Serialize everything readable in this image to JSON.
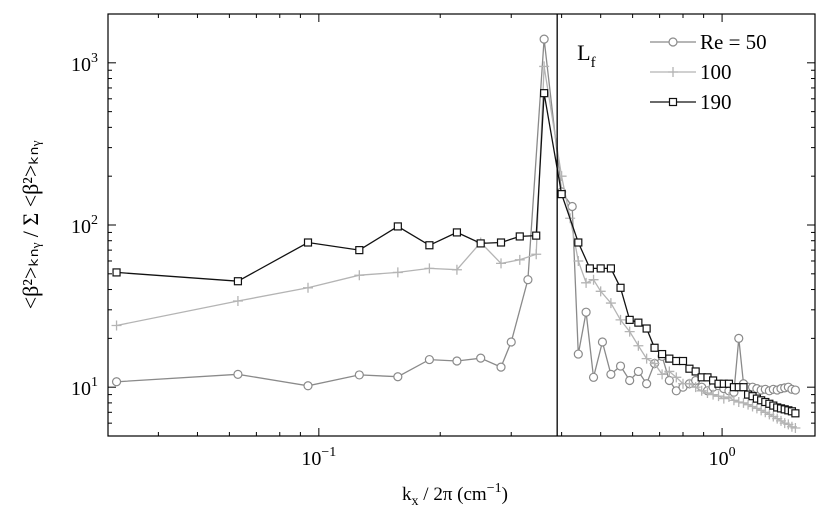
{
  "chart_data": {
    "type": "line",
    "xscale": "log",
    "yscale": "log",
    "xlim": [
      0.03,
      1.7
    ],
    "ylim": [
      5,
      2000
    ],
    "x_ticks": [
      {
        "value": 0.1,
        "base": "10",
        "exp": "−1"
      },
      {
        "value": 1,
        "base": "10",
        "exp": "0"
      }
    ],
    "y_ticks": [
      {
        "value": 10,
        "base": "10",
        "exp": "1"
      },
      {
        "value": 100,
        "base": "10",
        "exp": "2"
      },
      {
        "value": 1000,
        "base": "10",
        "exp": "3"
      }
    ],
    "xlabel": {
      "k": "k",
      "sub": "x",
      "rest": " / 2π (cm",
      "sup": "−1",
      "close": ")"
    },
    "ylabel": "<β²>ₖₙᵧ / Σ <β²>ₖₙᵧ",
    "vline": {
      "x": 0.39,
      "label": "L",
      "label_sub": "f"
    },
    "legend_position": "top-right",
    "series": [
      {
        "name": "Re = 50",
        "color": "#8a8a8a",
        "marker": "circle",
        "x": [
          0.0315,
          0.063,
          0.094,
          0.126,
          0.157,
          0.188,
          0.22,
          0.252,
          0.283,
          0.3,
          0.33,
          0.362,
          0.4,
          0.425,
          0.44,
          0.46,
          0.48,
          0.505,
          0.53,
          0.56,
          0.59,
          0.62,
          0.65,
          0.68,
          0.71,
          0.74,
          0.77,
          0.8,
          0.83,
          0.86,
          0.89,
          0.92,
          0.95,
          0.98,
          1.01,
          1.04,
          1.07,
          1.1,
          1.13,
          1.16,
          1.19,
          1.22,
          1.25,
          1.28,
          1.31,
          1.34,
          1.37,
          1.4,
          1.43,
          1.46,
          1.49,
          1.52
        ],
        "y": [
          10.8,
          12,
          10.2,
          11.9,
          11.6,
          14.8,
          14.5,
          15.1,
          13.3,
          19,
          46,
          1400,
          160,
          130,
          16,
          29,
          11.5,
          19,
          12,
          13.5,
          11,
          12.5,
          10.5,
          14,
          15.5,
          11,
          9.5,
          10,
          10.5,
          11,
          10,
          9.5,
          10,
          10.2,
          9.8,
          9.5,
          9.3,
          20,
          10.5,
          10,
          10,
          9.8,
          9.6,
          9.7,
          9.5,
          9.7,
          9.6,
          9.8,
          9.9,
          10,
          9.7,
          9.6
        ]
      },
      {
        "name": "100",
        "color": "#b4b4b4",
        "marker": "plus",
        "x": [
          0.0315,
          0.063,
          0.094,
          0.126,
          0.157,
          0.188,
          0.22,
          0.252,
          0.283,
          0.315,
          0.346,
          0.362,
          0.4,
          0.42,
          0.44,
          0.46,
          0.48,
          0.5,
          0.53,
          0.56,
          0.59,
          0.62,
          0.65,
          0.68,
          0.71,
          0.74,
          0.77,
          0.8,
          0.83,
          0.86,
          0.89,
          0.92,
          0.95,
          0.98,
          1.01,
          1.04,
          1.07,
          1.1,
          1.13,
          1.16,
          1.19,
          1.22,
          1.25,
          1.28,
          1.31,
          1.34,
          1.37,
          1.4,
          1.43,
          1.46,
          1.49,
          1.52
        ],
        "y": [
          24,
          34,
          41,
          49,
          51,
          54,
          53,
          78,
          58,
          61,
          66,
          950,
          200,
          110,
          60,
          44,
          46,
          39,
          33,
          26,
          22,
          18,
          15,
          14,
          12,
          12.5,
          11.5,
          10.5,
          10.5,
          10,
          9.5,
          9.2,
          9,
          8.8,
          8.5,
          8.7,
          8.3,
          8.1,
          8,
          7.8,
          7.6,
          7.4,
          7.2,
          7,
          6.8,
          6.6,
          6.4,
          6.2,
          6,
          5.9,
          5.7,
          5.6
        ]
      },
      {
        "name": "190",
        "color": "#111111",
        "marker": "square",
        "x": [
          0.0315,
          0.063,
          0.094,
          0.126,
          0.157,
          0.188,
          0.22,
          0.252,
          0.283,
          0.315,
          0.346,
          0.362,
          0.4,
          0.44,
          0.47,
          0.5,
          0.53,
          0.56,
          0.59,
          0.62,
          0.65,
          0.68,
          0.71,
          0.74,
          0.77,
          0.8,
          0.83,
          0.86,
          0.89,
          0.92,
          0.95,
          0.98,
          1.01,
          1.04,
          1.07,
          1.1,
          1.13,
          1.16,
          1.19,
          1.22,
          1.25,
          1.28,
          1.31,
          1.34,
          1.37,
          1.4,
          1.43,
          1.46,
          1.49,
          1.52
        ],
        "y": [
          51,
          45,
          78,
          70,
          98,
          75,
          90,
          77,
          78,
          85,
          86,
          650,
          155,
          78,
          54,
          54,
          54,
          41,
          26,
          25,
          23,
          17.5,
          16,
          15,
          14.5,
          14.5,
          13,
          12.5,
          11.5,
          11.5,
          11,
          10.5,
          10.5,
          10.5,
          10,
          10,
          10,
          9,
          8.8,
          8.5,
          8.3,
          8.1,
          7.9,
          7.7,
          7.5,
          7.4,
          7.3,
          7.2,
          7.1,
          6.9
        ]
      }
    ]
  }
}
